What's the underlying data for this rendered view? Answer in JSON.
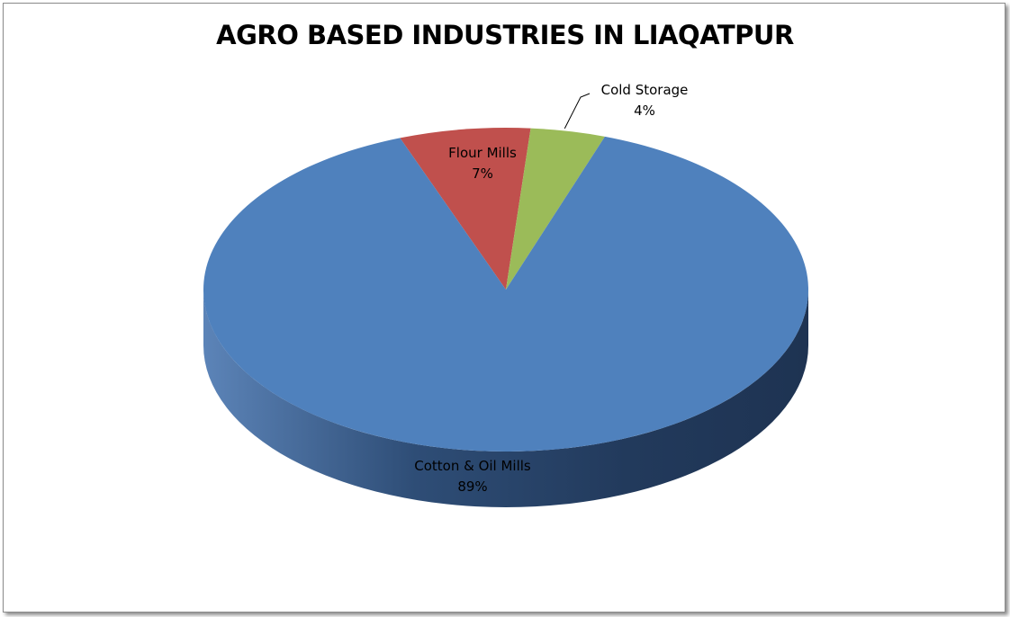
{
  "chart_data": {
    "type": "pie",
    "title": "AGRO BASED INDUSTRIES IN LIAQATPUR",
    "slices": [
      {
        "label": "Cotton & Oil Mills",
        "value": 89,
        "display": "89%",
        "color": "#4F81BD"
      },
      {
        "label": "Flour Mills",
        "value": 7,
        "display": "7%",
        "color": "#C0504D"
      },
      {
        "label": "Cold Storage",
        "value": 4,
        "display": "4%",
        "color": "#9BBB59"
      }
    ],
    "style": "3d",
    "legend": "none"
  }
}
